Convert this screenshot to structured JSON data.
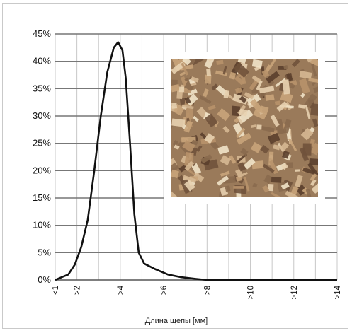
{
  "chart_data": {
    "type": "line",
    "title": "",
    "xlabel": "Длина щепы  [мм]",
    "ylabel": "",
    "x_tick_labels": [
      "<1",
      ">2",
      ">4",
      ">6",
      ">8",
      ">10",
      ">12",
      ">14"
    ],
    "y_tick_labels": [
      "0%",
      "5%",
      "10%",
      "15%",
      "20%",
      "25%",
      "30%",
      "35%",
      "40%",
      "45%"
    ],
    "xlim": [
      1,
      14
    ],
    "ylim": [
      0,
      45
    ],
    "grid": true,
    "legend": "none",
    "series": [
      {
        "color": "#111111",
        "points": [
          [
            1.0,
            0.0
          ],
          [
            1.3,
            0.5
          ],
          [
            1.6,
            1.0
          ],
          [
            1.9,
            2.8
          ],
          [
            2.2,
            6.0
          ],
          [
            2.5,
            11.0
          ],
          [
            2.8,
            20.0
          ],
          [
            3.1,
            30.0
          ],
          [
            3.4,
            38.0
          ],
          [
            3.7,
            42.5
          ],
          [
            3.9,
            43.5
          ],
          [
            4.1,
            42.0
          ],
          [
            4.25,
            37.0
          ],
          [
            4.45,
            25.0
          ],
          [
            4.65,
            12.0
          ],
          [
            4.85,
            5.0
          ],
          [
            5.1,
            3.0
          ],
          [
            5.6,
            2.0
          ],
          [
            6.2,
            1.0
          ],
          [
            6.8,
            0.5
          ],
          [
            7.5,
            0.2
          ],
          [
            8.0,
            0.0
          ],
          [
            14.0,
            0.0
          ]
        ]
      }
    ]
  },
  "inset_photo": {
    "label": "wood-chips-photo",
    "palette": [
      "#8a6a4e",
      "#c9a47a",
      "#e8d2b0",
      "#5b3f2c",
      "#b8926a",
      "#f1e3c8",
      "#70523b",
      "#d6b892"
    ]
  }
}
